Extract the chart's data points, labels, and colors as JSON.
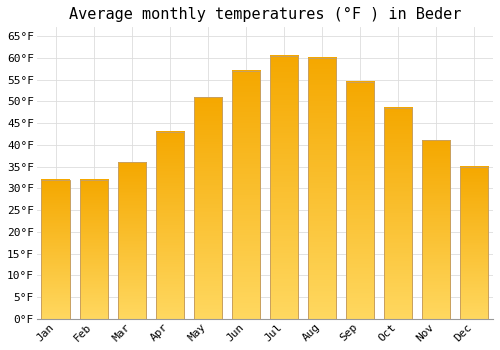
{
  "title": "Average monthly temperatures (°F ) in Beder",
  "months": [
    "Jan",
    "Feb",
    "Mar",
    "Apr",
    "May",
    "Jun",
    "Jul",
    "Aug",
    "Sep",
    "Oct",
    "Nov",
    "Dec"
  ],
  "values": [
    32,
    32,
    36,
    43,
    51,
    57,
    60.5,
    60,
    54.5,
    48.5,
    41,
    35
  ],
  "bar_color_top": "#F5A800",
  "bar_color_bottom": "#FFD860",
  "bar_edge_color": "#C8A060",
  "background_color": "#FFFFFF",
  "grid_color": "#DDDDDD",
  "title_fontsize": 11,
  "tick_fontsize": 8,
  "ylim": [
    0,
    67
  ],
  "yticks": [
    0,
    5,
    10,
    15,
    20,
    25,
    30,
    35,
    40,
    45,
    50,
    55,
    60,
    65
  ],
  "ytick_labels": [
    "0°F",
    "5°F",
    "10°F",
    "15°F",
    "20°F",
    "25°F",
    "30°F",
    "35°F",
    "40°F",
    "45°F",
    "50°F",
    "55°F",
    "60°F",
    "65°F"
  ]
}
